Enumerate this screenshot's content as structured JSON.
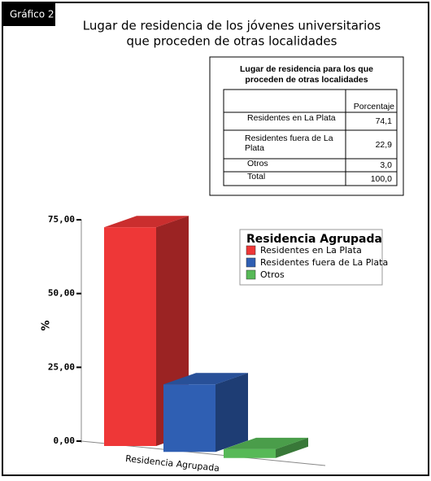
{
  "label": "Gráfico 2",
  "title": [
    "Lugar de residencia de los jóvenes universitarios",
    "que proceden de otras localidades"
  ],
  "table": {
    "title": [
      "Lugar de residencia para los que",
      "proceden de otras localidades"
    ],
    "header": "Porcentaje",
    "rows": [
      [
        "Residentes en La Plata",
        "74,1"
      ],
      [
        "Residentes fuera de La Plata",
        "22,9"
      ],
      [
        "Otros",
        "3,0"
      ],
      [
        "Total",
        "100,0"
      ]
    ]
  },
  "chart_data": {
    "type": "bar3d",
    "categories": [
      "Residentes en La Plata",
      "Residentes fuera de La Plata",
      "Otros"
    ],
    "values": [
      74.1,
      22.9,
      3.0
    ],
    "colors": [
      "#ee3737",
      "#2f5fb3",
      "#57b957"
    ],
    "xlabel": "Residencia Agrupada",
    "ylabel": "%",
    "legend_title": "Residencia Agrupada",
    "ylim": [
      0,
      75
    ],
    "yticks": [
      {
        "value": 0,
        "label": "0,00"
      },
      {
        "value": 25,
        "label": "25,00"
      },
      {
        "value": 50,
        "label": "50,00"
      },
      {
        "value": 75,
        "label": "75,00"
      }
    ]
  }
}
